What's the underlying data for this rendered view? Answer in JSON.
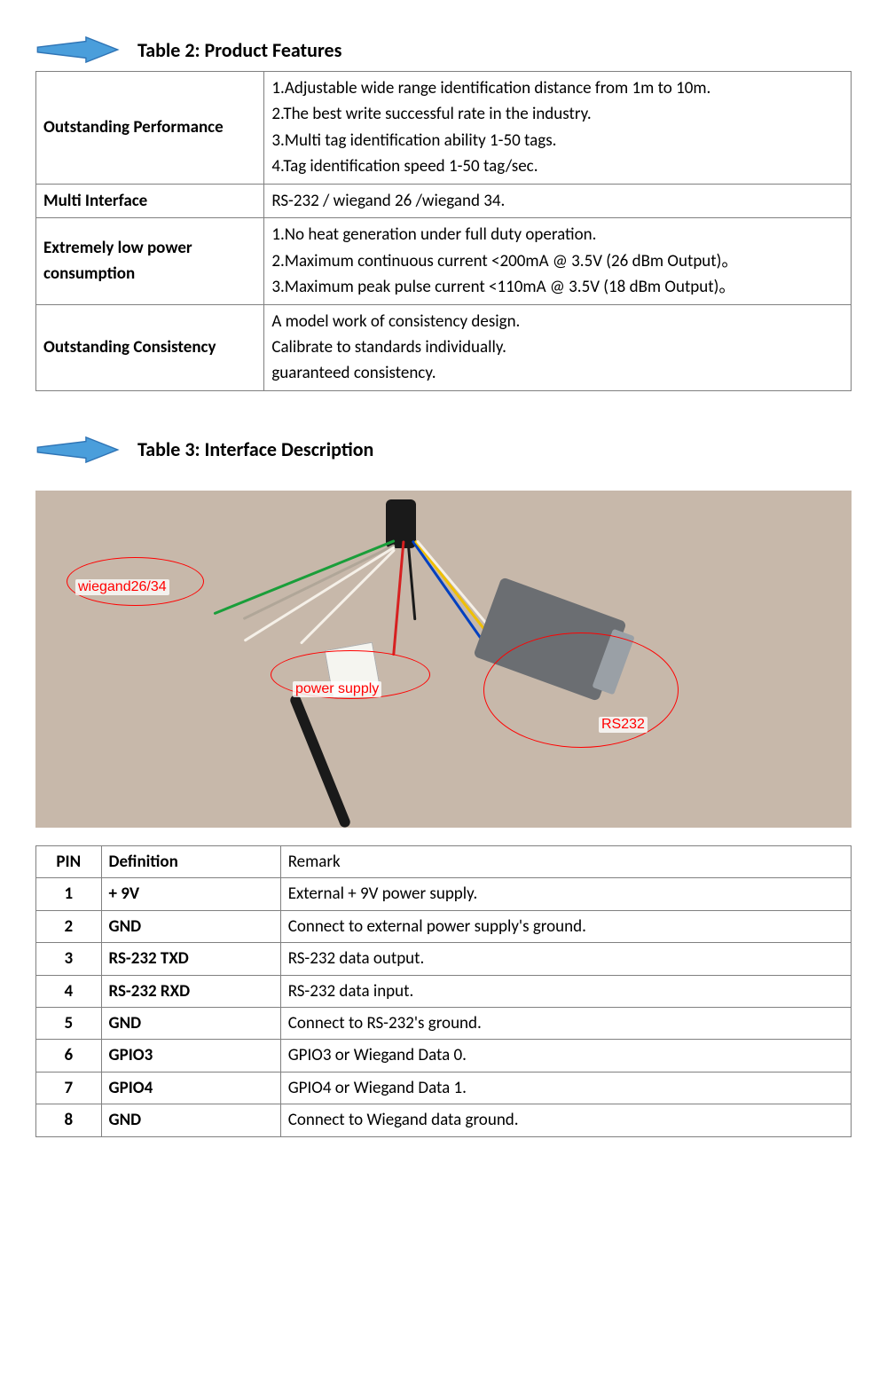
{
  "arrow": {
    "fill": "#4a9edb",
    "stroke": "#2f74b5",
    "stroke_width": 1.5
  },
  "table2": {
    "title": "Table 2: Product Features",
    "rows": [
      {
        "label": "Outstanding Performance",
        "desc": "1.Adjustable wide range identification distance from 1m to 10m.\n2.The best write successful rate in the industry.\n3.Multi tag identification ability 1-50 tags.\n4.Tag identification speed 1-50 tag/sec."
      },
      {
        "label": "Multi Interface",
        "desc": "RS-232 / wiegand 26 /wiegand 34."
      },
      {
        "label": "Extremely low power consumption",
        "desc": "1.No heat generation under full duty operation.\n2.Maximum continuous current <200mA @ 3.5V (26 dBm Output)。\n3.Maximum peak pulse current <110mA @ 3.5V (18 dBm Output)。"
      },
      {
        "label": "Outstanding Consistency",
        "desc": "A model work of consistency design.\nCalibrate to standards individually.\nguaranteed consistency."
      }
    ]
  },
  "table3": {
    "title": "Table 3: Interface Description",
    "photo": {
      "background": "#c7b8aa",
      "labels": {
        "wiegand": "wiegand26/34",
        "power": "power supply",
        "rs232": "RS232"
      },
      "wire_colors": {
        "green": "#1a9e3a",
        "grey": "#b0a698",
        "white": "#f5f0e8",
        "red": "#d62020",
        "blue": "#0040c0",
        "yellow": "#f0c000",
        "black": "#1a1a1a"
      }
    },
    "columns": [
      "PIN",
      "Definition",
      "Remark"
    ],
    "rows": [
      {
        "pin": "1",
        "def": "+ 9V",
        "remark": "External + 9V power supply."
      },
      {
        "pin": "2",
        "def": "GND",
        "remark": "Connect to external power supply's ground."
      },
      {
        "pin": "3",
        "def": "RS-232 TXD",
        "remark": "RS-232 data output."
      },
      {
        "pin": "4",
        "def": "RS-232 RXD",
        "remark": "RS-232 data input."
      },
      {
        "pin": "5",
        "def": "GND",
        "remark": "Connect to RS-232's ground."
      },
      {
        "pin": "6",
        "def": "GPIO3",
        "remark": "GPIO3 or Wiegand Data 0."
      },
      {
        "pin": "7",
        "def": "GPIO4",
        "remark": "GPIO4 or Wiegand Data 1."
      },
      {
        "pin": "8",
        "def": "GND",
        "remark": "Connect to Wiegand data ground."
      }
    ]
  }
}
